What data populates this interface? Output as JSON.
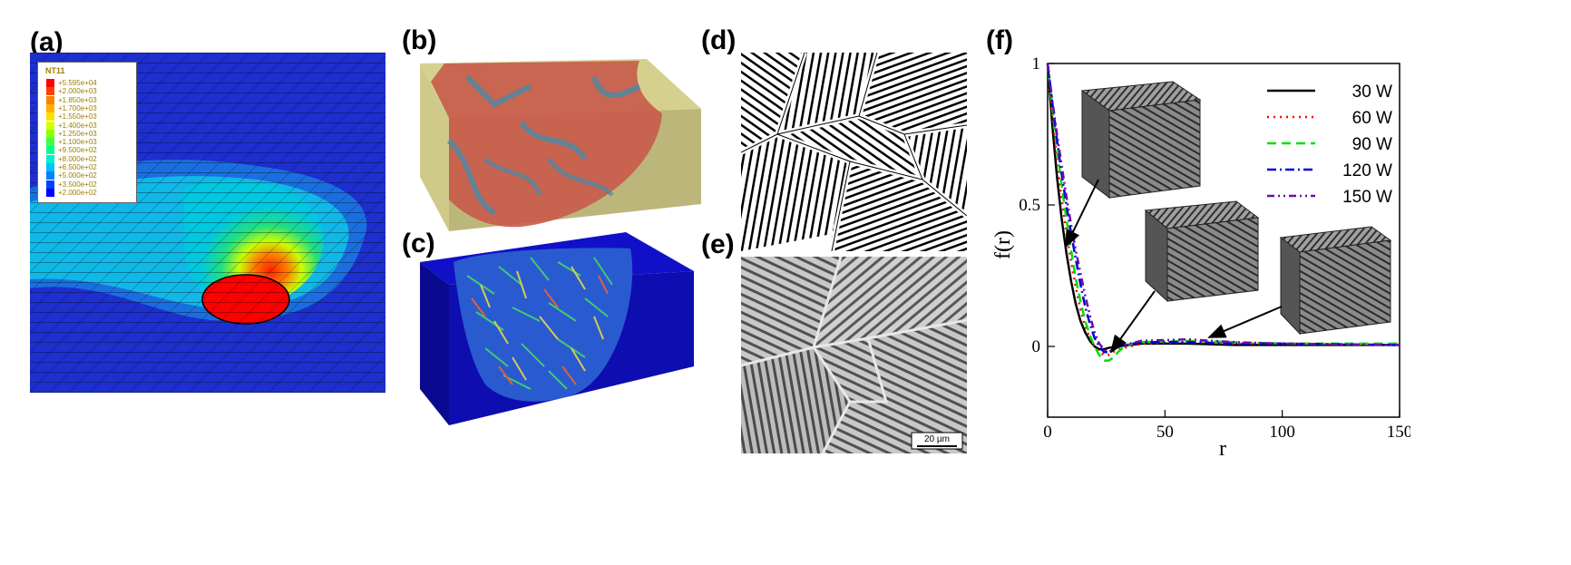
{
  "labels": {
    "a": "(a)",
    "b": "(b)",
    "c": "(c)",
    "d": "(d)",
    "e": "(e)",
    "f": "(f)"
  },
  "panel_a": {
    "legend_title": "NT11",
    "legend_values": [
      "+5.595e+04",
      "+2.000e+03",
      "+1.850e+03",
      "+1.700e+03",
      "+1.550e+03",
      "+1.400e+03",
      "+1.250e+03",
      "+1.100e+03",
      "+9.500e+02",
      "+8.000e+02",
      "+6.500e+02",
      "+5.000e+02",
      "+3.500e+02",
      "+2.000e+02"
    ],
    "legend_colors": [
      "#ff0000",
      "#ff4000",
      "#ff8000",
      "#ffb000",
      "#ffe000",
      "#d8ff00",
      "#8cff00",
      "#40ff40",
      "#00ff90",
      "#00f0d0",
      "#00c0ff",
      "#0080ff",
      "#0040ff",
      "#0000ff"
    ]
  },
  "panel_e": {
    "scalebar": "20 µm"
  },
  "chart_data": {
    "type": "line",
    "xlabel": "r",
    "ylabel": "f(r)",
    "xlim": [
      0,
      150
    ],
    "ylim": [
      -0.25,
      1.0
    ],
    "xticks": [
      "0",
      "50",
      "100",
      "150"
    ],
    "yticks": [
      "1",
      "0.5",
      "0"
    ],
    "ytick_values": [
      1,
      0.5,
      0
    ],
    "xtick_values": [
      0,
      50,
      100,
      150
    ],
    "legend_position": "top-right",
    "series": [
      {
        "name": "30 W",
        "color": "#000000",
        "dash": "",
        "x": [
          0,
          2,
          4,
          6,
          8,
          10,
          12,
          14,
          16,
          18,
          20,
          22,
          24,
          26,
          30,
          40,
          60,
          80,
          100,
          150
        ],
        "y": [
          1.0,
          0.78,
          0.6,
          0.45,
          0.33,
          0.23,
          0.15,
          0.09,
          0.05,
          0.02,
          0.0,
          -0.01,
          -0.01,
          -0.005,
          0.0,
          0.01,
          0.01,
          0.005,
          0.005,
          0.005
        ]
      },
      {
        "name": "60 W",
        "color": "#ff0000",
        "dash": "2,5",
        "x": [
          0,
          2,
          4,
          6,
          8,
          10,
          12,
          14,
          16,
          18,
          20,
          22,
          24,
          26,
          28,
          30,
          40,
          60,
          80,
          100,
          150
        ],
        "y": [
          1.0,
          0.82,
          0.66,
          0.52,
          0.4,
          0.3,
          0.21,
          0.13,
          0.07,
          0.03,
          0.0,
          -0.02,
          -0.03,
          -0.03,
          -0.02,
          -0.01,
          0.01,
          0.015,
          0.01,
          0.01,
          0.005
        ]
      },
      {
        "name": "90 W",
        "color": "#00e000",
        "dash": "10,6",
        "x": [
          0,
          2,
          4,
          6,
          8,
          10,
          12,
          14,
          16,
          18,
          20,
          22,
          24,
          26,
          28,
          30,
          32,
          36,
          40,
          60,
          80,
          100,
          150
        ],
        "y": [
          1.0,
          0.84,
          0.7,
          0.57,
          0.45,
          0.34,
          0.24,
          0.16,
          0.09,
          0.04,
          0.0,
          -0.03,
          -0.05,
          -0.05,
          -0.04,
          -0.02,
          -0.005,
          0.01,
          0.015,
          0.02,
          0.015,
          0.01,
          0.01
        ]
      },
      {
        "name": "120 W",
        "color": "#0000dd",
        "dash": "10,4,2,4",
        "x": [
          0,
          2,
          4,
          6,
          8,
          10,
          12,
          14,
          16,
          18,
          20,
          22,
          24,
          26,
          28,
          30,
          40,
          60,
          80,
          100,
          150
        ],
        "y": [
          1.0,
          0.86,
          0.73,
          0.61,
          0.5,
          0.4,
          0.31,
          0.22,
          0.14,
          0.08,
          0.03,
          0.0,
          -0.02,
          -0.02,
          -0.015,
          0.0,
          0.015,
          0.015,
          0.01,
          0.01,
          0.005
        ]
      },
      {
        "name": "150 W",
        "color": "#6a0dad",
        "dash": "8,4,2,4,2,4",
        "x": [
          0,
          2,
          4,
          6,
          8,
          10,
          12,
          14,
          16,
          18,
          20,
          22,
          24,
          26,
          28,
          30,
          40,
          60,
          80,
          100,
          150
        ],
        "y": [
          1.0,
          0.87,
          0.75,
          0.64,
          0.53,
          0.43,
          0.34,
          0.26,
          0.18,
          0.11,
          0.05,
          0.01,
          -0.01,
          -0.02,
          -0.01,
          0.0,
          0.02,
          0.025,
          0.015,
          0.01,
          0.005
        ]
      }
    ]
  }
}
